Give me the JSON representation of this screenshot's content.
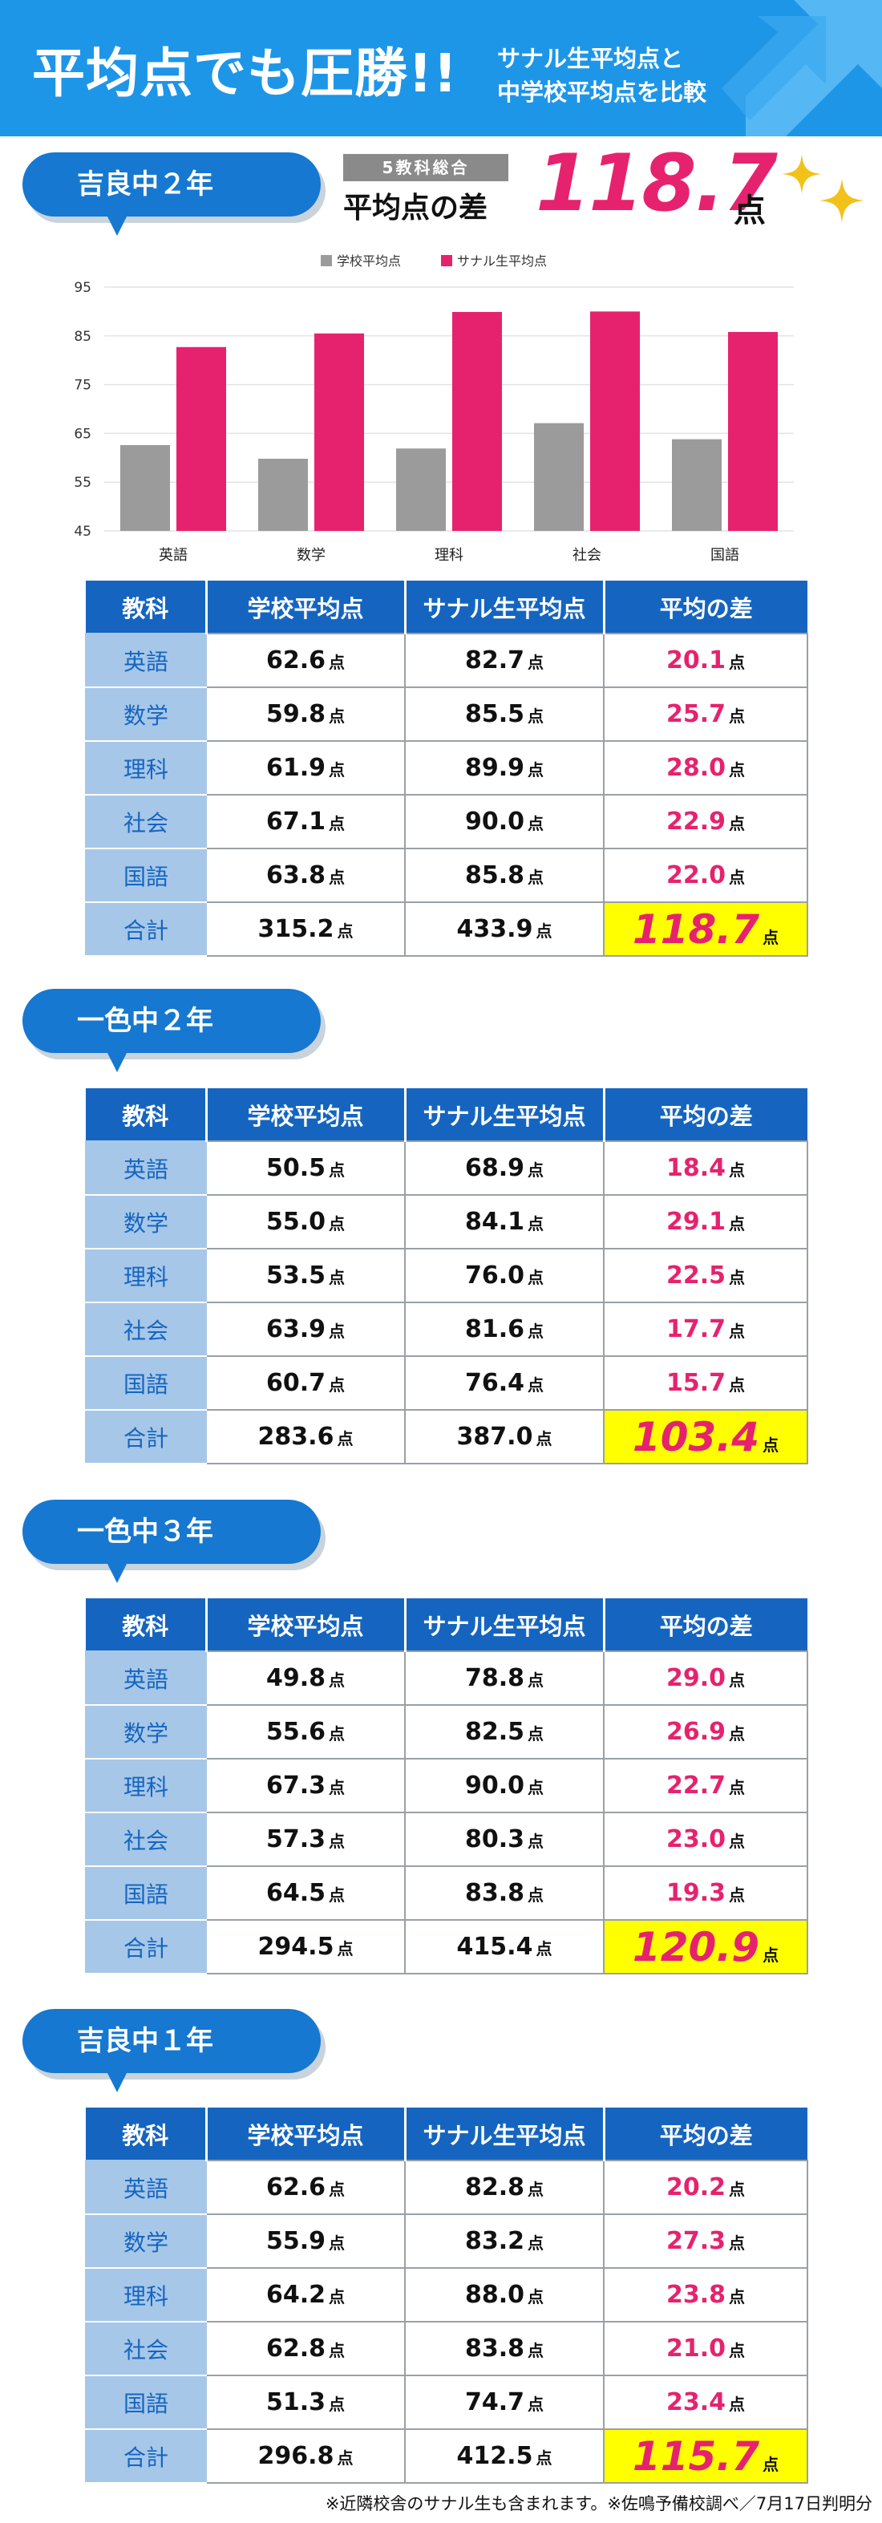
{
  "banner": {
    "title": "平均点でも圧勝!!",
    "subtitle_line1": "サナル生平均点と",
    "subtitle_line2": "中学校平均点を比較"
  },
  "headline": {
    "tag": "5教科総合",
    "label": "平均点の差",
    "value": "118.7",
    "unit": "点"
  },
  "colors": {
    "school": "#9b9b9b",
    "sanaru": "#e6226e",
    "header": "#1565c0",
    "subject": "#a7c7e8",
    "highlight": "#ffff00"
  },
  "chart_data": {
    "type": "bar",
    "categories": [
      "英語",
      "数学",
      "理科",
      "社会",
      "国語"
    ],
    "series": [
      {
        "name": "学校平均点",
        "values": [
          62.6,
          59.8,
          61.9,
          67.1,
          63.8
        ]
      },
      {
        "name": "サナル生平均点",
        "values": [
          82.7,
          85.5,
          89.9,
          90.0,
          85.8
        ]
      }
    ],
    "ylim": [
      45,
      95
    ],
    "yticks": [
      45,
      55,
      65,
      75,
      85,
      95
    ],
    "grid": true,
    "legend": "top-center"
  },
  "table_headers": [
    "教科",
    "学校平均点",
    "サナル生平均点",
    "平均の差"
  ],
  "unit": "点",
  "sections": [
    {
      "label": "吉良中２年",
      "rows": [
        {
          "subject": "英語",
          "school": "62.6",
          "sanaru": "82.7",
          "diff": "20.1"
        },
        {
          "subject": "数学",
          "school": "59.8",
          "sanaru": "85.5",
          "diff": "25.7"
        },
        {
          "subject": "理科",
          "school": "61.9",
          "sanaru": "89.9",
          "diff": "28.0"
        },
        {
          "subject": "社会",
          "school": "67.1",
          "sanaru": "90.0",
          "diff": "22.9"
        },
        {
          "subject": "国語",
          "school": "63.8",
          "sanaru": "85.8",
          "diff": "22.0"
        }
      ],
      "total": {
        "subject": "合計",
        "school": "315.2",
        "sanaru": "433.9",
        "diff": "118.7"
      }
    },
    {
      "label": "一色中２年",
      "rows": [
        {
          "subject": "英語",
          "school": "50.5",
          "sanaru": "68.9",
          "diff": "18.4"
        },
        {
          "subject": "数学",
          "school": "55.0",
          "sanaru": "84.1",
          "diff": "29.1"
        },
        {
          "subject": "理科",
          "school": "53.5",
          "sanaru": "76.0",
          "diff": "22.5"
        },
        {
          "subject": "社会",
          "school": "63.9",
          "sanaru": "81.6",
          "diff": "17.7"
        },
        {
          "subject": "国語",
          "school": "60.7",
          "sanaru": "76.4",
          "diff": "15.7"
        }
      ],
      "total": {
        "subject": "合計",
        "school": "283.6",
        "sanaru": "387.0",
        "diff": "103.4"
      }
    },
    {
      "label": "一色中３年",
      "rows": [
        {
          "subject": "英語",
          "school": "49.8",
          "sanaru": "78.8",
          "diff": "29.0"
        },
        {
          "subject": "数学",
          "school": "55.6",
          "sanaru": "82.5",
          "diff": "26.9"
        },
        {
          "subject": "理科",
          "school": "67.3",
          "sanaru": "90.0",
          "diff": "22.7"
        },
        {
          "subject": "社会",
          "school": "57.3",
          "sanaru": "80.3",
          "diff": "23.0"
        },
        {
          "subject": "国語",
          "school": "64.5",
          "sanaru": "83.8",
          "diff": "19.3"
        }
      ],
      "total": {
        "subject": "合計",
        "school": "294.5",
        "sanaru": "415.4",
        "diff": "120.9"
      }
    },
    {
      "label": "吉良中１年",
      "rows": [
        {
          "subject": "英語",
          "school": "62.6",
          "sanaru": "82.8",
          "diff": "20.2"
        },
        {
          "subject": "数学",
          "school": "55.9",
          "sanaru": "83.2",
          "diff": "27.3"
        },
        {
          "subject": "理科",
          "school": "64.2",
          "sanaru": "88.0",
          "diff": "23.8"
        },
        {
          "subject": "社会",
          "school": "62.8",
          "sanaru": "83.8",
          "diff": "21.0"
        },
        {
          "subject": "国語",
          "school": "51.3",
          "sanaru": "74.7",
          "diff": "23.4"
        }
      ],
      "total": {
        "subject": "合計",
        "school": "296.8",
        "sanaru": "412.5",
        "diff": "115.7"
      }
    }
  ],
  "footer": "※近隣校舎のサナル生も含まれます。※佐鳴予備校調べ／7月17日判明分"
}
